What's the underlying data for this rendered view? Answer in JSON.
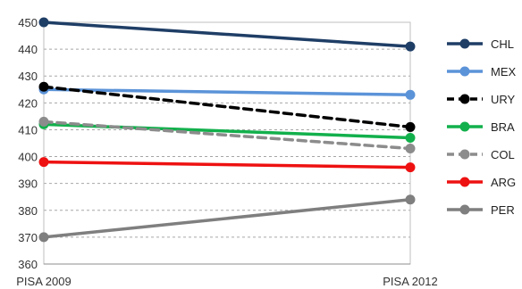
{
  "chart_data": {
    "type": "line",
    "categories": [
      "PISA 2009",
      "PISA 2012"
    ],
    "ylim": [
      360,
      450
    ],
    "yticks": [
      360,
      370,
      380,
      390,
      400,
      410,
      420,
      430,
      440,
      450
    ],
    "grid": true,
    "legend_position": "right",
    "series": [
      {
        "name": "CHL",
        "values": [
          450,
          441
        ],
        "color": "#1f3e66",
        "dashed": false
      },
      {
        "name": "MEX",
        "values": [
          425,
          423
        ],
        "color": "#5b93d8",
        "dashed": false
      },
      {
        "name": "URY",
        "values": [
          426,
          411
        ],
        "color": "#000000",
        "dashed": true
      },
      {
        "name": "BRA",
        "values": [
          412,
          407
        ],
        "color": "#12b04c",
        "dashed": false
      },
      {
        "name": "COL",
        "values": [
          413,
          403
        ],
        "color": "#8c8c8c",
        "dashed": true
      },
      {
        "name": "ARG",
        "values": [
          398,
          396
        ],
        "color": "#ee1111",
        "dashed": false
      },
      {
        "name": "PER",
        "values": [
          370,
          384
        ],
        "color": "#7f7f7f",
        "dashed": false
      }
    ]
  }
}
